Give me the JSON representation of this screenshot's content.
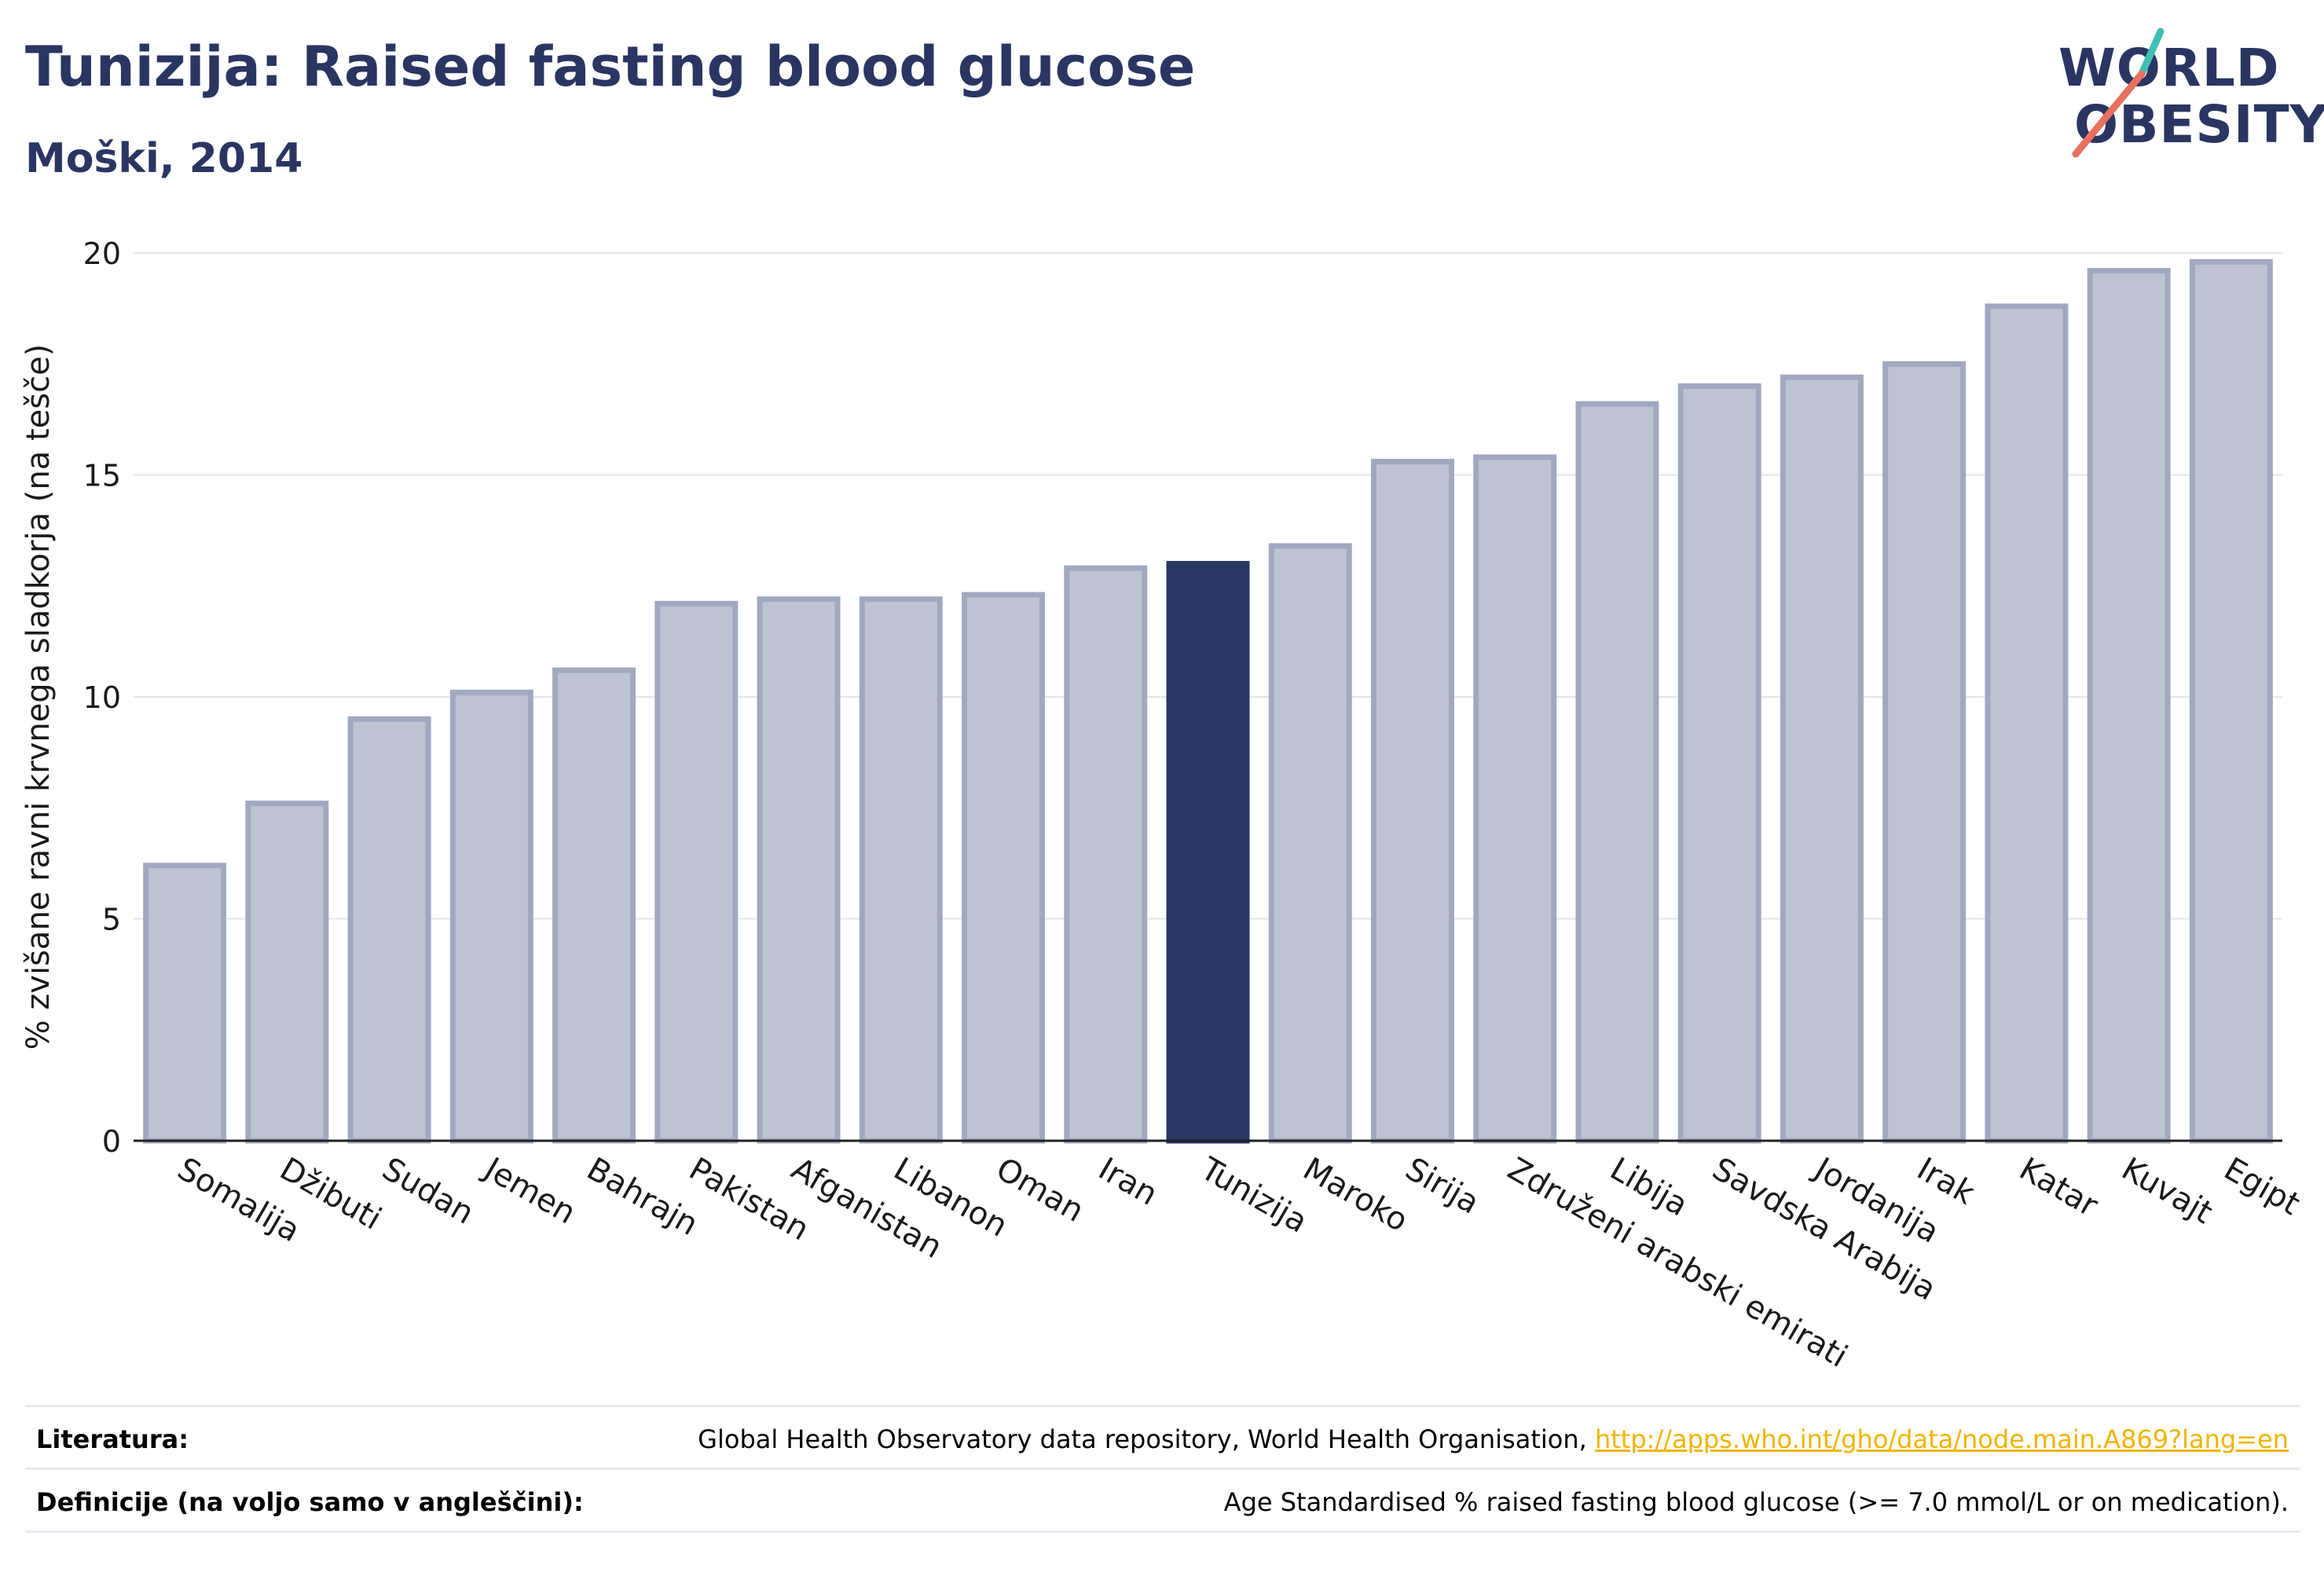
{
  "header": {
    "title": "Tunizija: Raised fasting blood glucose",
    "subtitle": "Moški, 2014"
  },
  "logo": {
    "line1": "WORLD",
    "line2": "OBESITY"
  },
  "chart_data": {
    "type": "bar",
    "ylabel": "% zvišane ravni krvnega sladkorja (na tešče)",
    "ylim": [
      0,
      20
    ],
    "yticks": [
      0,
      5,
      10,
      15,
      20
    ],
    "grid": true,
    "highlight": "Tunizija",
    "colors": {
      "bar": "#bfc3d1",
      "bar_border": "#a2a8c0",
      "highlight": "#2b3562"
    },
    "categories": [
      "Somalija",
      "Džibuti",
      "Sudan",
      "Jemen",
      "Bahrajn",
      "Pakistan",
      "Afganistan",
      "Libanon",
      "Oman",
      "Iran",
      "Tunizija",
      "Maroko",
      "Sirija",
      "Združeni arabski emirati",
      "Libija",
      "Savdska Arabija",
      "Jordanija",
      "Irak",
      "Katar",
      "Kuvajt",
      "Egipt"
    ],
    "values": [
      6.2,
      7.6,
      9.5,
      10.1,
      10.6,
      12.1,
      12.2,
      12.2,
      12.3,
      12.9,
      13.0,
      13.4,
      15.3,
      15.4,
      16.6,
      17.0,
      17.2,
      17.5,
      18.8,
      19.6,
      19.8
    ]
  },
  "footer": {
    "literature_label": "Literatura:",
    "literature_text": "Global Health Observatory data repository, World Health Organisation,",
    "literature_link": "http://apps.who.int/gho/data/node.main.A869?lang=en",
    "definitions_label": "Definicije (na voljo samo v angleščini):",
    "definitions_text": "Age Standardised % raised fasting blood glucose (>= 7.0 mmol/L or on medication)."
  }
}
